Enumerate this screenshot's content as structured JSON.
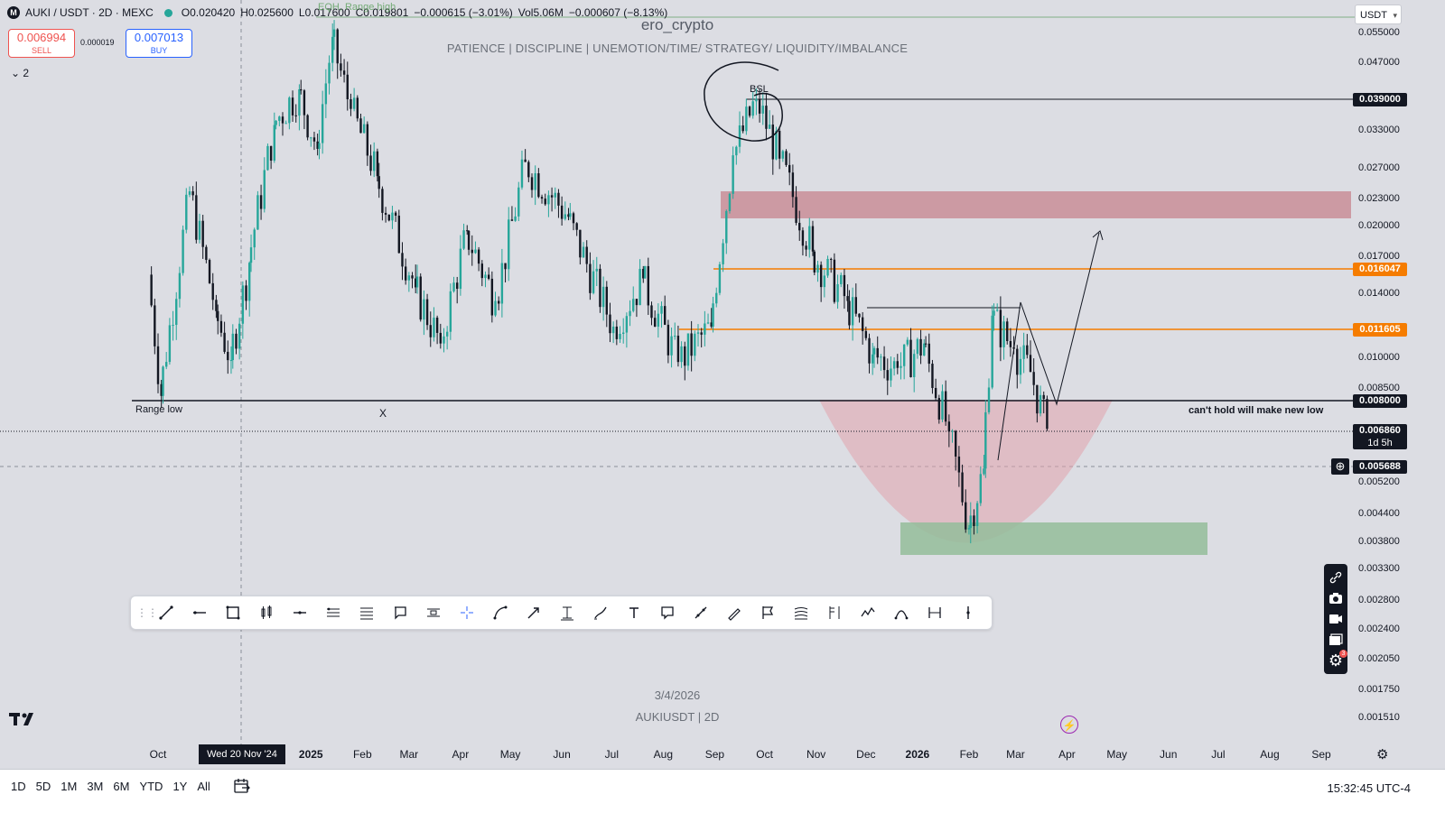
{
  "legend": {
    "exchange_icon": "M",
    "symbol": "AUKI / USDT · 2D · MEXC",
    "status_dot": "market-open-dot",
    "open": "O0.020420",
    "high": "H0.025600",
    "low": "L0.017600",
    "close": "C0.019801",
    "change": "−0.000615 (−3.01%)",
    "volume_label": "Vol5.06M",
    "volume_change": "−0.000607 (−8.13%)"
  },
  "trade": {
    "sell_price": "0.006994",
    "sell_label": "SELL",
    "spread": "0.000019",
    "buy_price": "0.007013",
    "buy_label": "BUY"
  },
  "indicators_toggle": "2",
  "overlay": {
    "faint_top_label": "EQH, Range high",
    "watermark_title": "ero_crypto",
    "watermark_subtitle": "PATIENCE   |   DISCIPLINE   |   UNEMOTION/TIME/ STRATEGY/ LIQUIDITY/IMBALANCE",
    "date_watermark": "3/4/2026",
    "symbol_watermark": "AUKIUSDT  |  2D"
  },
  "annotations": {
    "bsl": "BSL",
    "range_low": "Range low",
    "x_mark": "X",
    "new_low_note": "can't hold will make new low"
  },
  "price_scale": {
    "currency": "USDT",
    "ticks": [
      "0.055000",
      "0.047000",
      "0.033000",
      "0.027000",
      "0.023000",
      "0.020000",
      "0.017000",
      "0.014000",
      "0.010000",
      "0.008500",
      "0.005200",
      "0.004400",
      "0.003800",
      "0.003300",
      "0.002800",
      "0.002400",
      "0.002050",
      "0.001750",
      "0.001510"
    ],
    "tag_bsl": "0.039000",
    "tag_orange_high": "0.016047",
    "tag_orange_low": "0.011605",
    "tag_range_low": "0.008000",
    "tag_last_price": "0.006860",
    "tag_countdown": "1d 5h",
    "tag_crosshair": "0.005688"
  },
  "time_axis": {
    "labels": [
      "Oct",
      "2025",
      "Feb",
      "Mar",
      "Apr",
      "May",
      "Jun",
      "Jul",
      "Aug",
      "Sep",
      "Oct",
      "Nov",
      "Dec",
      "2026",
      "Feb",
      "Mar",
      "Apr",
      "May",
      "Jun",
      "Jul",
      "Aug",
      "Sep"
    ],
    "cursor_date": "Wed 20 Nov '24"
  },
  "drawing_tools": [
    "trend-line",
    "horizontal-ray",
    "rectangle",
    "long-position",
    "horizontal-line",
    "parallel-channel",
    "fib-retracement",
    "callout",
    "pitchfork",
    "crosshair",
    "curve",
    "arrow",
    "price-range",
    "brush",
    "text",
    "note",
    "path",
    "pen",
    "flag",
    "fib-channel",
    "date-price-range",
    "polyline",
    "arc",
    "date-range",
    "vertical-line"
  ],
  "right_tools": [
    "link-icon",
    "camera-icon",
    "video-icon",
    "layout-icon",
    "settings-icon"
  ],
  "settings_badge": "3",
  "bottom_bar": {
    "ranges": [
      "1D",
      "5D",
      "1M",
      "3M",
      "6M",
      "YTD",
      "1Y",
      "All"
    ],
    "clock": "15:32:45 UTC-4"
  },
  "colors": {
    "background": "#dcdde3",
    "up_candle": "#26a69a",
    "down_candle": "#131722",
    "supply_zone": "#c98e98",
    "demand_zone": "#94bd9a",
    "bowl": "#e2a3ad",
    "orange_level": "#f57c00",
    "buy_blue": "#2962ff",
    "sell_red": "#ef5350"
  },
  "chart_data": {
    "type": "candlestick",
    "symbol": "AUKI/USDT",
    "interval": "2D",
    "scale": "log",
    "ylim": [
      0.00151,
      0.055
    ],
    "levels": [
      {
        "label": "BSL",
        "price": 0.039
      },
      {
        "price": 0.016047
      },
      {
        "price": 0.011605
      },
      {
        "label": "Range low",
        "price": 0.008
      },
      {
        "price": 0.00686
      }
    ],
    "zones": [
      {
        "kind": "supply",
        "top": 0.0235,
        "bottom": 0.0205,
        "from": "2025-09-10",
        "to": "2026-09-30"
      },
      {
        "kind": "demand",
        "top": 0.0041,
        "bottom": 0.00355,
        "from": "2025-12-15",
        "to": "2026-05-25"
      }
    ],
    "price_path": [
      {
        "date": "2024-09-25",
        "price": 0.0155
      },
      {
        "date": "2024-10-03",
        "price": 0.0082
      },
      {
        "date": "2024-10-20",
        "price": 0.024
      },
      {
        "date": "2024-11-05",
        "price": 0.0128
      },
      {
        "date": "2024-11-14",
        "price": 0.0099
      },
      {
        "date": "2024-11-25",
        "price": 0.0165
      },
      {
        "date": "2024-12-10",
        "price": 0.034
      },
      {
        "date": "2024-12-25",
        "price": 0.041
      },
      {
        "date": "2025-01-05",
        "price": 0.03
      },
      {
        "date": "2025-01-14",
        "price": 0.054
      },
      {
        "date": "2025-01-25",
        "price": 0.037
      },
      {
        "date": "2025-02-10",
        "price": 0.026
      },
      {
        "date": "2025-03-05",
        "price": 0.0145
      },
      {
        "date": "2025-03-20",
        "price": 0.0108
      },
      {
        "date": "2025-04-05",
        "price": 0.0195
      },
      {
        "date": "2025-04-22",
        "price": 0.0135
      },
      {
        "date": "2025-05-10",
        "price": 0.028
      },
      {
        "date": "2025-06-05",
        "price": 0.021
      },
      {
        "date": "2025-07-02",
        "price": 0.0118
      },
      {
        "date": "2025-07-20",
        "price": 0.0152
      },
      {
        "date": "2025-08-10",
        "price": 0.0098
      },
      {
        "date": "2025-08-30",
        "price": 0.0118
      },
      {
        "date": "2025-09-12",
        "price": 0.029
      },
      {
        "date": "2025-09-26",
        "price": 0.039
      },
      {
        "date": "2025-10-10",
        "price": 0.0285
      },
      {
        "date": "2025-10-30",
        "price": 0.0175
      },
      {
        "date": "2025-11-20",
        "price": 0.0135
      },
      {
        "date": "2025-12-05",
        "price": 0.0102
      },
      {
        "date": "2025-12-20",
        "price": 0.0095
      },
      {
        "date": "2026-01-05",
        "price": 0.0108
      },
      {
        "date": "2026-01-20",
        "price": 0.0068
      },
      {
        "date": "2026-02-01",
        "price": 0.0041
      },
      {
        "date": "2026-02-10",
        "price": 0.0056
      },
      {
        "date": "2026-02-15",
        "price": 0.0125
      },
      {
        "date": "2026-02-28",
        "price": 0.0105
      },
      {
        "date": "2026-03-10",
        "price": 0.0093
      },
      {
        "date": "2026-03-20",
        "price": 0.0069
      }
    ],
    "projection": [
      {
        "date": "2026-03-15",
        "price": 0.0082
      },
      {
        "date": "2026-04-15",
        "price": 0.0185
      }
    ]
  }
}
